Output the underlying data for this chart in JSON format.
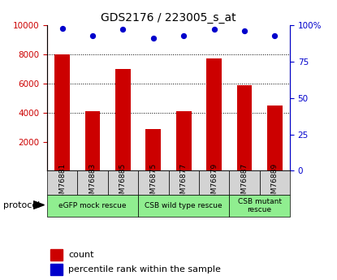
{
  "title": "GDS2176 / 223005_s_at",
  "samples": [
    "GSM76881",
    "GSM76883",
    "GSM76885",
    "GSM76875",
    "GSM76877",
    "GSM76879",
    "GSM76887",
    "GSM76889"
  ],
  "counts": [
    8000,
    4100,
    7000,
    2850,
    4100,
    7700,
    5900,
    4500
  ],
  "percentiles": [
    98,
    93,
    97,
    91,
    93,
    97,
    96,
    93
  ],
  "ylim_left": [
    0,
    10000
  ],
  "ylim_right": [
    0,
    100
  ],
  "yticks_left": [
    2000,
    4000,
    6000,
    8000,
    10000
  ],
  "ytick_labels_right": [
    "0",
    "25",
    "50",
    "75",
    "100%"
  ],
  "bar_color": "#cc0000",
  "dot_color": "#0000cc",
  "bg_color": "#ffffff",
  "protocol_groups": [
    {
      "label": "eGFP mock rescue",
      "start": 0,
      "end": 3,
      "color": "#90ee90"
    },
    {
      "label": "CSB wild type rescue",
      "start": 3,
      "end": 6,
      "color": "#90ee90"
    },
    {
      "label": "CSB mutant\nrescue",
      "start": 6,
      "end": 8,
      "color": "#90ee90"
    }
  ],
  "legend_count_label": "count",
  "legend_pct_label": "percentile rank within the sample",
  "protocol_label": "protocol"
}
